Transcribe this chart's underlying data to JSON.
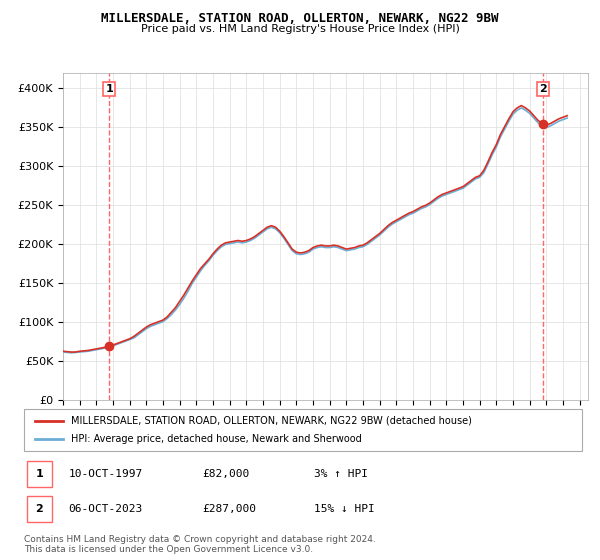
{
  "title": "MILLERSDALE, STATION ROAD, OLLERTON, NEWARK, NG22 9BW",
  "subtitle": "Price paid vs. HM Land Registry's House Price Index (HPI)",
  "ylabel_ticks": [
    "£0",
    "£50K",
    "£100K",
    "£150K",
    "£200K",
    "£250K",
    "£300K",
    "£350K",
    "£400K"
  ],
  "ytick_values": [
    0,
    50000,
    100000,
    150000,
    200000,
    250000,
    300000,
    350000,
    400000
  ],
  "ylim": [
    0,
    420000
  ],
  "xlim_start": 1995.0,
  "xlim_end": 2026.5,
  "hpi_color": "#6baed6",
  "price_color": "#d73027",
  "marker_color": "#d73027",
  "vline_color": "#ff6666",
  "transactions": [
    {
      "num": 1,
      "date": "10-OCT-1997",
      "price": 82000,
      "hpi_pct": "3%",
      "hpi_dir": "↑",
      "x_year": 1997.78
    },
    {
      "num": 2,
      "date": "06-OCT-2023",
      "price": 287000,
      "hpi_pct": "15%",
      "hpi_dir": "↓",
      "x_year": 2023.78
    }
  ],
  "legend_line1": "MILLERSDALE, STATION ROAD, OLLERTON, NEWARK, NG22 9BW (detached house)",
  "legend_line2": "HPI: Average price, detached house, Newark and Sherwood",
  "copyright_text": "Contains HM Land Registry data © Crown copyright and database right 2024.\nThis data is licensed under the Open Government Licence v3.0.",
  "hpi_data_x": [
    1995.0,
    1995.25,
    1995.5,
    1995.75,
    1996.0,
    1996.25,
    1996.5,
    1996.75,
    1997.0,
    1997.25,
    1997.5,
    1997.75,
    1998.0,
    1998.25,
    1998.5,
    1998.75,
    1999.0,
    1999.25,
    1999.5,
    1999.75,
    2000.0,
    2000.25,
    2000.5,
    2000.75,
    2001.0,
    2001.25,
    2001.5,
    2001.75,
    2002.0,
    2002.25,
    2002.5,
    2002.75,
    2003.0,
    2003.25,
    2003.5,
    2003.75,
    2004.0,
    2004.25,
    2004.5,
    2004.75,
    2005.0,
    2005.25,
    2005.5,
    2005.75,
    2006.0,
    2006.25,
    2006.5,
    2006.75,
    2007.0,
    2007.25,
    2007.5,
    2007.75,
    2008.0,
    2008.25,
    2008.5,
    2008.75,
    2009.0,
    2009.25,
    2009.5,
    2009.75,
    2010.0,
    2010.25,
    2010.5,
    2010.75,
    2011.0,
    2011.25,
    2011.5,
    2011.75,
    2012.0,
    2012.25,
    2012.5,
    2012.75,
    2013.0,
    2013.25,
    2013.5,
    2013.75,
    2014.0,
    2014.25,
    2014.5,
    2014.75,
    2015.0,
    2015.25,
    2015.5,
    2015.75,
    2016.0,
    2016.25,
    2016.5,
    2016.75,
    2017.0,
    2017.25,
    2017.5,
    2017.75,
    2018.0,
    2018.25,
    2018.5,
    2018.75,
    2019.0,
    2019.25,
    2019.5,
    2019.75,
    2020.0,
    2020.25,
    2020.5,
    2020.75,
    2021.0,
    2021.25,
    2021.5,
    2021.75,
    2022.0,
    2022.25,
    2022.5,
    2022.75,
    2023.0,
    2023.25,
    2023.5,
    2023.75,
    2024.0,
    2024.25,
    2024.5,
    2024.75,
    2025.0,
    2025.25
  ],
  "hpi_data_y": [
    62000,
    61500,
    61000,
    61500,
    62000,
    62500,
    63000,
    64000,
    65000,
    66000,
    67000,
    68000,
    70000,
    72000,
    74000,
    76000,
    78000,
    80000,
    84000,
    88000,
    92000,
    95000,
    97000,
    99000,
    101000,
    105000,
    110000,
    116000,
    123000,
    131000,
    140000,
    150000,
    158000,
    166000,
    173000,
    179000,
    186000,
    192000,
    197000,
    200000,
    201000,
    202000,
    203000,
    202000,
    203000,
    205000,
    208000,
    212000,
    216000,
    220000,
    222000,
    220000,
    215000,
    208000,
    200000,
    192000,
    188000,
    187000,
    188000,
    190000,
    194000,
    196000,
    197000,
    196000,
    196000,
    197000,
    196000,
    194000,
    192000,
    193000,
    194000,
    196000,
    197000,
    200000,
    204000,
    208000,
    212000,
    217000,
    222000,
    226000,
    229000,
    232000,
    235000,
    238000,
    240000,
    243000,
    246000,
    248000,
    251000,
    255000,
    259000,
    262000,
    264000,
    266000,
    268000,
    270000,
    272000,
    276000,
    280000,
    284000,
    286000,
    292000,
    303000,
    315000,
    325000,
    338000,
    348000,
    358000,
    367000,
    372000,
    375000,
    372000,
    368000,
    362000,
    356000,
    352000,
    350000,
    352000,
    355000,
    358000,
    360000,
    362000
  ],
  "price_data_x": [
    1995.0,
    1995.25,
    1995.5,
    1995.75,
    1996.0,
    1996.25,
    1996.5,
    1996.75,
    1997.0,
    1997.25,
    1997.5,
    1997.75,
    1998.0,
    1998.25,
    1998.5,
    1998.75,
    1999.0,
    1999.25,
    1999.5,
    1999.75,
    2000.0,
    2000.25,
    2000.5,
    2000.75,
    2001.0,
    2001.25,
    2001.5,
    2001.75,
    2002.0,
    2002.25,
    2002.5,
    2002.75,
    2003.0,
    2003.25,
    2003.5,
    2003.75,
    2004.0,
    2004.25,
    2004.5,
    2004.75,
    2005.0,
    2005.25,
    2005.5,
    2005.75,
    2006.0,
    2006.25,
    2006.5,
    2006.75,
    2007.0,
    2007.25,
    2007.5,
    2007.75,
    2008.0,
    2008.25,
    2008.5,
    2008.75,
    2009.0,
    2009.25,
    2009.5,
    2009.75,
    2010.0,
    2010.25,
    2010.5,
    2010.75,
    2011.0,
    2011.25,
    2011.5,
    2011.75,
    2012.0,
    2012.25,
    2012.5,
    2012.75,
    2013.0,
    2013.25,
    2013.5,
    2013.75,
    2014.0,
    2014.25,
    2014.5,
    2014.75,
    2015.0,
    2015.25,
    2015.5,
    2015.75,
    2016.0,
    2016.25,
    2016.5,
    2016.75,
    2017.0,
    2017.25,
    2017.5,
    2017.75,
    2018.0,
    2018.25,
    2018.5,
    2018.75,
    2019.0,
    2019.25,
    2019.5,
    2019.75,
    2020.0,
    2020.25,
    2020.5,
    2020.75,
    2021.0,
    2021.25,
    2021.5,
    2021.75,
    2022.0,
    2022.25,
    2022.5,
    2022.75,
    2023.0,
    2023.25,
    2023.5,
    2023.75,
    2024.0,
    2024.25,
    2024.5,
    2024.75,
    2025.0,
    2025.25
  ],
  "price_data_y": [
    63000,
    62500,
    62000,
    62000,
    63000,
    63500,
    64000,
    65000,
    66000,
    67000,
    68000,
    69500,
    71000,
    73000,
    75000,
    77000,
    79000,
    82000,
    86000,
    90000,
    94000,
    97000,
    99000,
    101000,
    103000,
    107000,
    113000,
    119000,
    127000,
    135000,
    144000,
    153000,
    161000,
    169000,
    175000,
    181000,
    188000,
    194000,
    199000,
    202000,
    203000,
    204000,
    205000,
    204000,
    205000,
    207000,
    210000,
    214000,
    218000,
    222000,
    224000,
    222000,
    217000,
    210000,
    202000,
    194000,
    190000,
    189000,
    190000,
    192000,
    196000,
    198000,
    199000,
    198000,
    198000,
    199000,
    198000,
    196000,
    194000,
    195000,
    196000,
    198000,
    199000,
    202000,
    206000,
    210000,
    214000,
    219000,
    224000,
    228000,
    231000,
    234000,
    237000,
    240000,
    242000,
    245000,
    248000,
    250000,
    253000,
    257000,
    261000,
    264000,
    266000,
    268000,
    270000,
    272000,
    274000,
    278000,
    282000,
    286000,
    288000,
    295000,
    306000,
    318000,
    328000,
    341000,
    351000,
    361000,
    370000,
    375000,
    378000,
    375000,
    371000,
    365000,
    359000,
    355000,
    353000,
    355000,
    358000,
    361000,
    363000,
    365000
  ]
}
